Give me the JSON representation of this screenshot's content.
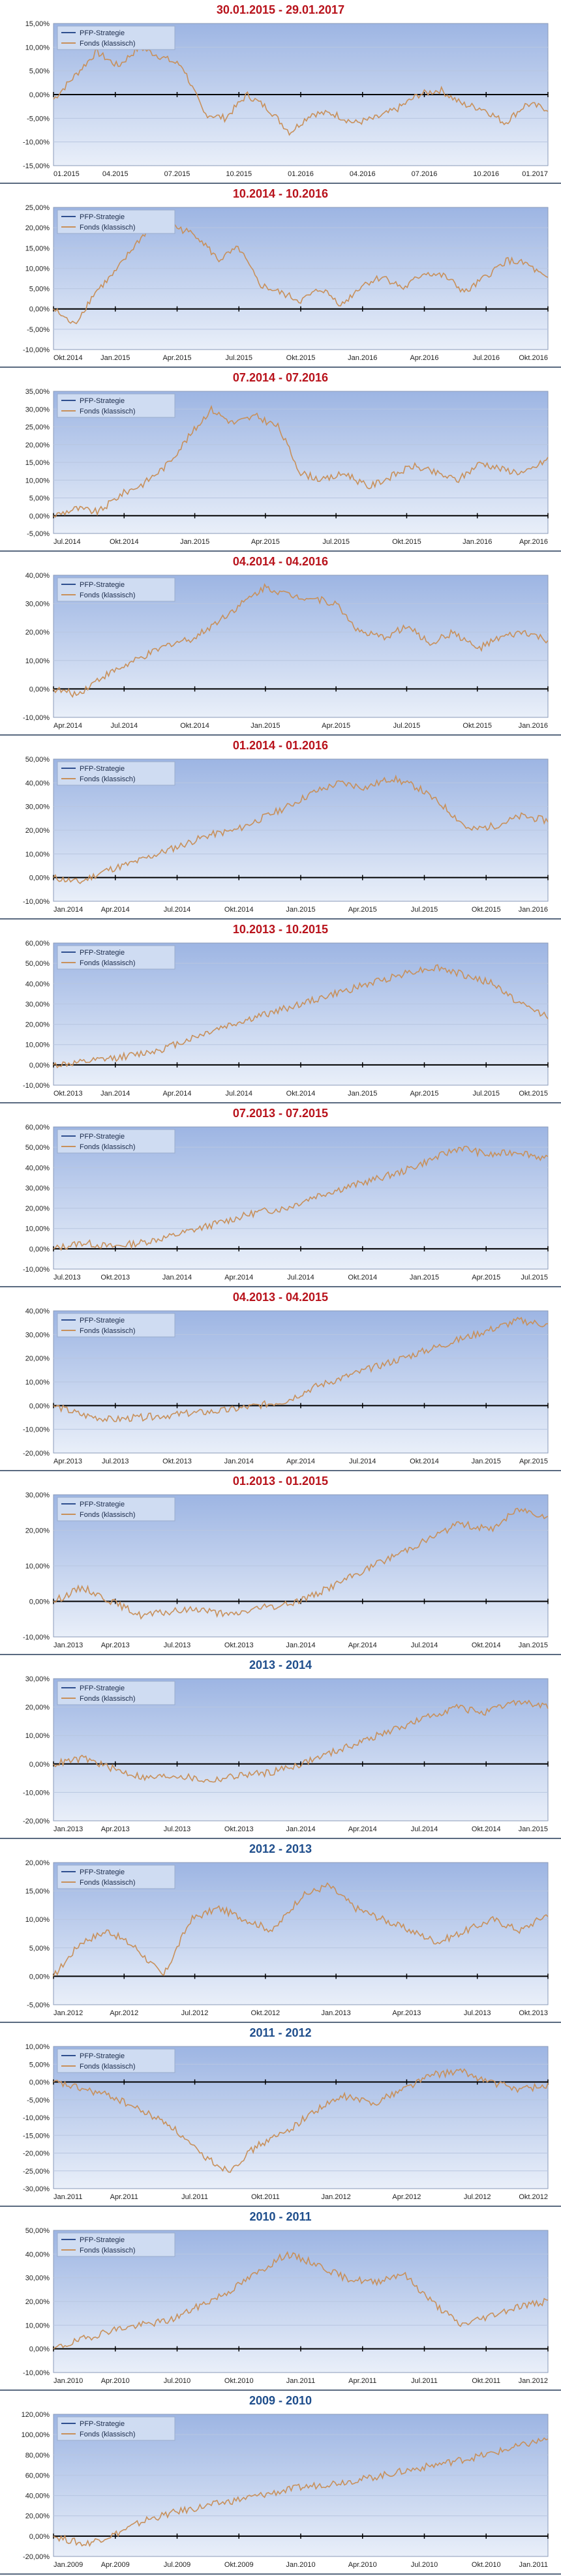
{
  "colors": {
    "title_red": "#b8121b",
    "title_blue": "#1f4e8c",
    "fonds_line": "#c8905a",
    "strategie_line": "#2f4f8f",
    "plot_bg_top": "#9db5e3",
    "plot_bg_bottom": "#e9eff9"
  },
  "legend": {
    "strategie": "PFP-Strategie",
    "fonds": "Fonds (klassisch)"
  },
  "chart_data": [
    {
      "type": "line",
      "title": "30.01.2015 - 29.01.2017",
      "title_color": "red",
      "yticks": [
        "15,00%",
        "10,00%",
        "5,00%",
        "0,00%",
        "-5,00%",
        "-10,00%",
        "-15,00%"
      ],
      "ylim": [
        -15,
        15
      ],
      "xticks": [
        "01.2015",
        "04.2015",
        "07.2015",
        "10.2015",
        "01.2016",
        "04.2016",
        "07.2016",
        "10.2016",
        "01.2017"
      ],
      "series": [
        {
          "name": "Fonds (klassisch)",
          "values": [
            -1,
            4,
            9,
            6,
            10,
            8,
            6,
            -4,
            -5,
            0,
            -3,
            -8,
            -4,
            -4,
            -6,
            -5,
            -3,
            0,
            1,
            -2,
            -3,
            -6,
            -2,
            -3
          ]
        }
      ]
    },
    {
      "type": "line",
      "title": "10.2014 - 10.2016",
      "title_color": "red",
      "yticks": [
        "25,00%",
        "20,00%",
        "15,00%",
        "10,00%",
        "5,00%",
        "0,00%",
        "-5,00%",
        "-10,00%"
      ],
      "ylim": [
        -10,
        25
      ],
      "xticks": [
        "Okt.2014",
        "Jan.2015",
        "Apr.2015",
        "Jul.2015",
        "Okt.2015",
        "Jan.2016",
        "Apr.2016",
        "Jul.2016",
        "Okt.2016"
      ],
      "series": [
        {
          "name": "Fonds (klassisch)",
          "values": [
            0,
            -4,
            4,
            9,
            16,
            22,
            20,
            18,
            12,
            15,
            6,
            4,
            2,
            5,
            1,
            6,
            8,
            5,
            9,
            8,
            4,
            8,
            12,
            11,
            7
          ]
        }
      ]
    },
    {
      "type": "line",
      "title": "07.2014 - 07.2016",
      "title_color": "red",
      "yticks": [
        "35,00%",
        "30,00%",
        "25,00%",
        "20,00%",
        "15,00%",
        "10,00%",
        "5,00%",
        "0,00%",
        "-5,00%"
      ],
      "ylim": [
        -5,
        35
      ],
      "xticks": [
        "Jul.2014",
        "Okt.2014",
        "Jan.2015",
        "Apr.2015",
        "Jul.2015",
        "Okt.2015",
        "Jan.2016",
        "Apr.2016"
      ],
      "series": [
        {
          "name": "Fonds (klassisch)",
          "values": [
            0,
            2,
            1,
            6,
            9,
            14,
            22,
            30,
            26,
            28,
            25,
            12,
            10,
            12,
            8,
            11,
            14,
            12,
            10,
            15,
            13,
            12,
            16
          ]
        }
      ]
    },
    {
      "type": "line",
      "title": "04.2014 - 04.2016",
      "title_color": "red",
      "yticks": [
        "40,00%",
        "30,00%",
        "20,00%",
        "10,00%",
        "0,00%",
        "-10,00%"
      ],
      "ylim": [
        -10,
        40
      ],
      "xticks": [
        "Apr.2014",
        "Jul.2014",
        "Okt.2014",
        "Jan.2015",
        "Apr.2015",
        "Jul.2015",
        "Okt.2015",
        "Jan.2016"
      ],
      "series": [
        {
          "name": "Fonds (klassisch)",
          "values": [
            0,
            -2,
            4,
            8,
            12,
            16,
            18,
            24,
            30,
            36,
            33,
            32,
            30,
            20,
            18,
            22,
            16,
            20,
            14,
            18,
            20,
            17
          ]
        }
      ]
    },
    {
      "type": "line",
      "title": "01.2014 - 01.2016",
      "title_color": "red",
      "yticks": [
        "50,00%",
        "40,00%",
        "30,00%",
        "20,00%",
        "10,00%",
        "0,00%",
        "-10,00%"
      ],
      "ylim": [
        -10,
        50
      ],
      "xticks": [
        "Jan.2014",
        "Apr.2014",
        "Jul.2014",
        "Okt.2014",
        "Jan.2015",
        "Apr.2015",
        "Jul.2015",
        "Okt.2015",
        "Jan.2016"
      ],
      "series": [
        {
          "name": "Fonds (klassisch)",
          "values": [
            0,
            -2,
            3,
            6,
            10,
            14,
            18,
            20,
            25,
            30,
            36,
            40,
            38,
            42,
            38,
            30,
            20,
            22,
            26,
            24
          ]
        }
      ]
    },
    {
      "type": "line",
      "title": "10.2013 - 10.2015",
      "title_color": "red",
      "yticks": [
        "60,00%",
        "50,00%",
        "40,00%",
        "30,00%",
        "20,00%",
        "10,00%",
        "0,00%",
        "-10,00%"
      ],
      "ylim": [
        -10,
        60
      ],
      "xticks": [
        "Okt.2013",
        "Jan.2014",
        "Apr.2014",
        "Jul.2014",
        "Okt.2014",
        "Jan.2015",
        "Apr.2015",
        "Jul.2015",
        "Okt.2015"
      ],
      "series": [
        {
          "name": "Fonds (klassisch)",
          "values": [
            0,
            1,
            3,
            5,
            8,
            13,
            18,
            22,
            26,
            30,
            34,
            38,
            42,
            46,
            48,
            44,
            40,
            30,
            24
          ]
        }
      ]
    },
    {
      "type": "line",
      "title": "07.2013 - 07.2015",
      "title_color": "red",
      "yticks": [
        "60,00%",
        "50,00%",
        "40,00%",
        "30,00%",
        "20,00%",
        "10,00%",
        "0,00%",
        "-10,00%"
      ],
      "ylim": [
        -10,
        60
      ],
      "xticks": [
        "Jul.2013",
        "Okt.2013",
        "Jan.2014",
        "Apr.2014",
        "Jul.2014",
        "Okt.2014",
        "Jan.2015",
        "Apr.2015",
        "Jul.2015"
      ],
      "series": [
        {
          "name": "Fonds (klassisch)",
          "values": [
            0,
            3,
            1,
            3,
            6,
            10,
            14,
            18,
            20,
            26,
            30,
            34,
            38,
            44,
            50,
            46,
            48,
            44
          ]
        }
      ]
    },
    {
      "type": "line",
      "title": "04.2013 - 04.2015",
      "title_color": "red",
      "yticks": [
        "40,00%",
        "30,00%",
        "20,00%",
        "10,00%",
        "0,00%",
        "-10,00%",
        "-20,00%"
      ],
      "ylim": [
        -20,
        40
      ],
      "xticks": [
        "Apr.2013",
        "Jul.2013",
        "Okt.2013",
        "Jan.2014",
        "Apr.2014",
        "Jul.2014",
        "Okt.2014",
        "Jan.2015",
        "Apr.2015"
      ],
      "series": [
        {
          "name": "Fonds (klassisch)",
          "values": [
            0,
            -4,
            -6,
            -5,
            -4,
            -3,
            -2,
            0,
            2,
            8,
            12,
            16,
            20,
            24,
            28,
            32,
            36,
            34
          ]
        }
      ]
    },
    {
      "type": "line",
      "title": "01.2013 - 01.2015",
      "title_color": "red",
      "yticks": [
        "30,00%",
        "20,00%",
        "10,00%",
        "0,00%",
        "-10,00%"
      ],
      "ylim": [
        -10,
        30
      ],
      "xticks": [
        "Jan.2013",
        "Apr.2013",
        "Jul.2013",
        "Okt.2013",
        "Jan.2014",
        "Apr.2014",
        "Jul.2014",
        "Okt.2014",
        "Jan.2015"
      ],
      "series": [
        {
          "name": "Fonds (klassisch)",
          "values": [
            0,
            4,
            0,
            -4,
            -3,
            -2,
            -4,
            -2,
            -1,
            2,
            6,
            10,
            14,
            18,
            22,
            20,
            26,
            24
          ]
        }
      ]
    },
    {
      "type": "line",
      "title": "2013 - 2014",
      "title_color": "blue",
      "yticks": [
        "30,00%",
        "20,00%",
        "10,00%",
        "0,00%",
        "-10,00%",
        "-20,00%"
      ],
      "ylim": [
        -20,
        30
      ],
      "xticks": [
        "Jan.2013",
        "Apr.2013",
        "Jul.2013",
        "Okt.2013",
        "Jan.2014",
        "Apr.2014",
        "Jul.2014",
        "Okt.2014",
        "Jan.2015"
      ],
      "series": [
        {
          "name": "Fonds (klassisch)",
          "values": [
            0,
            2,
            -2,
            -5,
            -4,
            -6,
            -4,
            -3,
            0,
            4,
            8,
            12,
            16,
            20,
            18,
            22,
            20
          ]
        }
      ]
    },
    {
      "type": "line",
      "title": "2012 - 2013",
      "title_color": "blue",
      "yticks": [
        "20,00%",
        "15,00%",
        "10,00%",
        "5,00%",
        "0,00%",
        "-5,00%"
      ],
      "ylim": [
        -5,
        20
      ],
      "xticks": [
        "Jan.2012",
        "Apr.2012",
        "Jul.2012",
        "Okt.2012",
        "Jan.2013",
        "Apr.2013",
        "Jul.2013",
        "Okt.2013"
      ],
      "series": [
        {
          "name": "Fonds (klassisch)",
          "values": [
            0,
            6,
            8,
            5,
            0,
            10,
            12,
            10,
            8,
            14,
            16,
            12,
            10,
            8,
            6,
            8,
            10,
            8,
            11
          ]
        }
      ]
    },
    {
      "type": "line",
      "title": "2011 - 2012",
      "title_color": "blue",
      "yticks": [
        "10,00%",
        "5,00%",
        "0,00%",
        "-5,00%",
        "-10,00%",
        "-15,00%",
        "-20,00%",
        "-25,00%",
        "-30,00%"
      ],
      "ylim": [
        -30,
        10
      ],
      "xticks": [
        "Jan.2011",
        "Apr.2011",
        "Jul.2011",
        "Okt.2011",
        "Jan.2012",
        "Apr.2012",
        "Jul.2012",
        "Okt.2012"
      ],
      "series": [
        {
          "name": "Fonds (klassisch)",
          "values": [
            0,
            -2,
            -4,
            -8,
            -12,
            -20,
            -25,
            -18,
            -14,
            -8,
            -4,
            -6,
            -2,
            2,
            3,
            0,
            -2,
            -1
          ]
        }
      ]
    },
    {
      "type": "line",
      "title": "2010 - 2011",
      "title_color": "blue",
      "yticks": [
        "50,00%",
        "40,00%",
        "30,00%",
        "20,00%",
        "10,00%",
        "0,00%",
        "-10,00%"
      ],
      "ylim": [
        -10,
        50
      ],
      "xticks": [
        "Jan.2010",
        "Apr.2010",
        "Jul.2010",
        "Okt.2010",
        "Jan.2011",
        "Apr.2011",
        "Jul.2011",
        "Okt.2011",
        "Jan.2012"
      ],
      "series": [
        {
          "name": "Fonds (klassisch)",
          "values": [
            0,
            4,
            8,
            10,
            12,
            18,
            24,
            32,
            40,
            36,
            30,
            28,
            32,
            20,
            10,
            14,
            18,
            20
          ]
        }
      ]
    },
    {
      "type": "line",
      "title": "2009 - 2010",
      "title_color": "blue",
      "yticks": [
        "120,00%",
        "100,00%",
        "80,00%",
        "60,00%",
        "40,00%",
        "20,00%",
        "0,00%",
        "-20,00%"
      ],
      "ylim": [
        -20,
        120
      ],
      "xticks": [
        "Jan.2009",
        "Apr.2009",
        "Jul.2009",
        "Okt.2009",
        "Jan.2010",
        "Apr.2010",
        "Jul.2010",
        "Okt.2010",
        "Jan.2011"
      ],
      "series": [
        {
          "name": "Fonds (klassisch)",
          "values": [
            0,
            -8,
            2,
            16,
            24,
            30,
            36,
            42,
            48,
            52,
            56,
            62,
            68,
            74,
            80,
            88,
            96
          ]
        }
      ]
    }
  ]
}
